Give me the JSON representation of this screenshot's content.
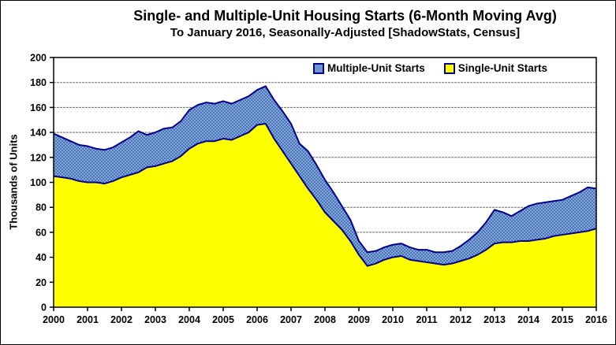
{
  "header": {
    "title": "Single- and Multiple-Unit Housing Starts (6-Month Moving Avg)",
    "subtitle": "To January 2016, Seasonally-Adjusted [ShadowStats, Census]"
  },
  "chart_data": {
    "type": "area",
    "stacked": true,
    "title": "Single- and Multiple-Unit Housing Starts (6-Month Moving Avg)",
    "subtitle": "To January 2016, Seasonally-Adjusted [ShadowStats, Census]",
    "xlabel": "",
    "ylabel": "Thousands of Units",
    "xlim": [
      2000,
      2016
    ],
    "ylim": [
      0,
      200
    ],
    "grid": "horizontal",
    "x_ticks": [
      2000,
      2001,
      2002,
      2003,
      2004,
      2005,
      2006,
      2007,
      2008,
      2009,
      2010,
      2011,
      2012,
      2013,
      2014,
      2015,
      2016
    ],
    "y_ticks": [
      0,
      20,
      40,
      60,
      80,
      100,
      120,
      140,
      160,
      180,
      200
    ],
    "legend": {
      "position": "top-center-inside",
      "items": [
        {
          "label": "Multiple-Unit Starts",
          "swatch_color": "#6d95cd",
          "swatch_border": "#00008b"
        },
        {
          "label": "Single-Unit Starts",
          "swatch_color": "#ffff00",
          "swatch_border": "#00008b"
        }
      ]
    },
    "line_color": "#00008b",
    "x": [
      2000,
      2000.25,
      2000.5,
      2000.75,
      2001,
      2001.25,
      2001.5,
      2001.75,
      2002,
      2002.25,
      2002.5,
      2002.75,
      2003,
      2003.25,
      2003.5,
      2003.75,
      2004,
      2004.25,
      2004.5,
      2004.75,
      2005,
      2005.25,
      2005.5,
      2005.75,
      2006,
      2006.25,
      2006.5,
      2006.75,
      2007,
      2007.25,
      2007.5,
      2007.75,
      2008,
      2008.25,
      2008.5,
      2008.75,
      2009,
      2009.25,
      2009.5,
      2009.75,
      2010,
      2010.25,
      2010.5,
      2010.75,
      2011,
      2011.25,
      2011.5,
      2011.75,
      2012,
      2012.25,
      2012.5,
      2012.75,
      2013,
      2013.25,
      2013.5,
      2013.75,
      2014,
      2014.25,
      2014.5,
      2014.75,
      2015,
      2015.25,
      2015.5,
      2015.75,
      2016
    ],
    "series": [
      {
        "name": "Single-Unit Starts",
        "color": "#ffff00",
        "texture": "solid",
        "values": [
          105,
          104,
          103,
          101,
          100,
          100,
          99,
          101,
          104,
          106,
          108,
          112,
          113,
          115,
          117,
          121,
          127,
          131,
          133,
          133,
          135,
          134,
          137,
          140,
          146,
          147,
          135,
          125,
          115,
          105,
          95,
          86,
          76,
          69,
          62,
          53,
          42,
          33,
          35,
          38,
          40,
          41,
          38,
          37,
          36,
          35,
          34,
          35,
          37,
          39,
          42,
          46,
          51,
          52,
          52,
          53,
          53,
          54,
          55,
          57,
          58,
          59,
          60,
          61,
          63
        ]
      },
      {
        "name": "Multiple-Unit Starts",
        "color": "#6d95cd",
        "texture": "dot-dither",
        "values": [
          34,
          32,
          30,
          29,
          29,
          27,
          27,
          27,
          28,
          30,
          33,
          26,
          27,
          28,
          27,
          28,
          31,
          31,
          31,
          30,
          30,
          29,
          29,
          29,
          28,
          30,
          31,
          32,
          32,
          26,
          30,
          28,
          26,
          23,
          19,
          17,
          11,
          11,
          10,
          10,
          10,
          10,
          10,
          9,
          10,
          9,
          10,
          10,
          12,
          15,
          18,
          22,
          27,
          24,
          21,
          24,
          28,
          29,
          29,
          28,
          28,
          30,
          32,
          35,
          32
        ]
      }
    ]
  }
}
